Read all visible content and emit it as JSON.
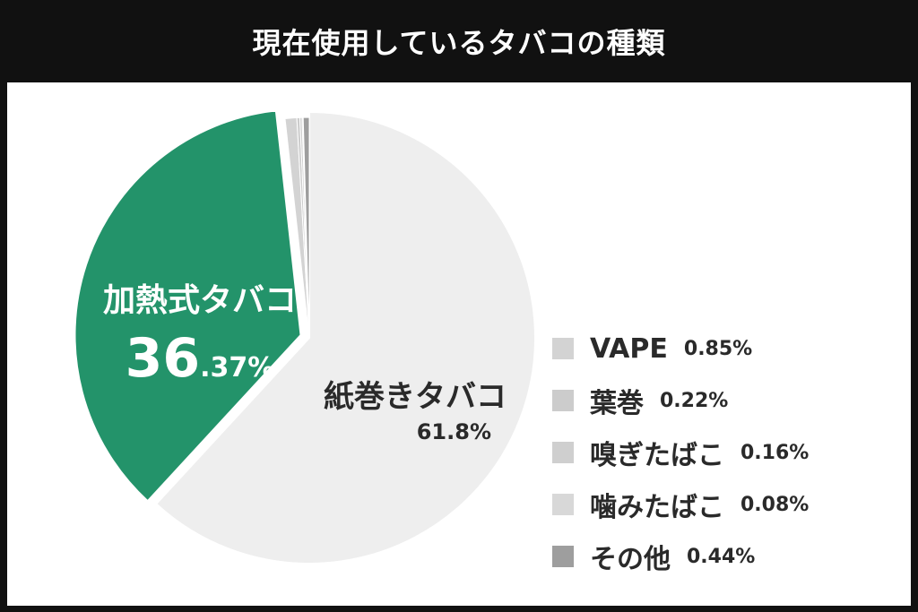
{
  "title": "現在使用しているタバコの種類",
  "chart_data": {
    "type": "pie",
    "slices": [
      {
        "name": "紙巻きタバコ",
        "value": 61.8,
        "label": "61.8%",
        "color": "#eeeeee"
      },
      {
        "name": "加熱式タバコ",
        "value": 36.37,
        "label_big": "36",
        "label_small": ".37%",
        "color": "#23936a"
      },
      {
        "name": "VAPE",
        "value": 0.85,
        "label": "0.85%",
        "color": "#d3d3d3"
      },
      {
        "name": "葉巻",
        "value": 0.22,
        "label": "0.22%",
        "color": "#cccccc"
      },
      {
        "name": "嗅ぎたばこ",
        "value": 0.16,
        "label": "0.16%",
        "color": "#cfcfcf"
      },
      {
        "name": "噛みたばこ",
        "value": 0.08,
        "label": "0.08%",
        "color": "#d8d8d8"
      },
      {
        "name": "その他",
        "value": 0.44,
        "label": "0.44%",
        "color": "#9e9e9e"
      }
    ],
    "legend_position": "right"
  }
}
